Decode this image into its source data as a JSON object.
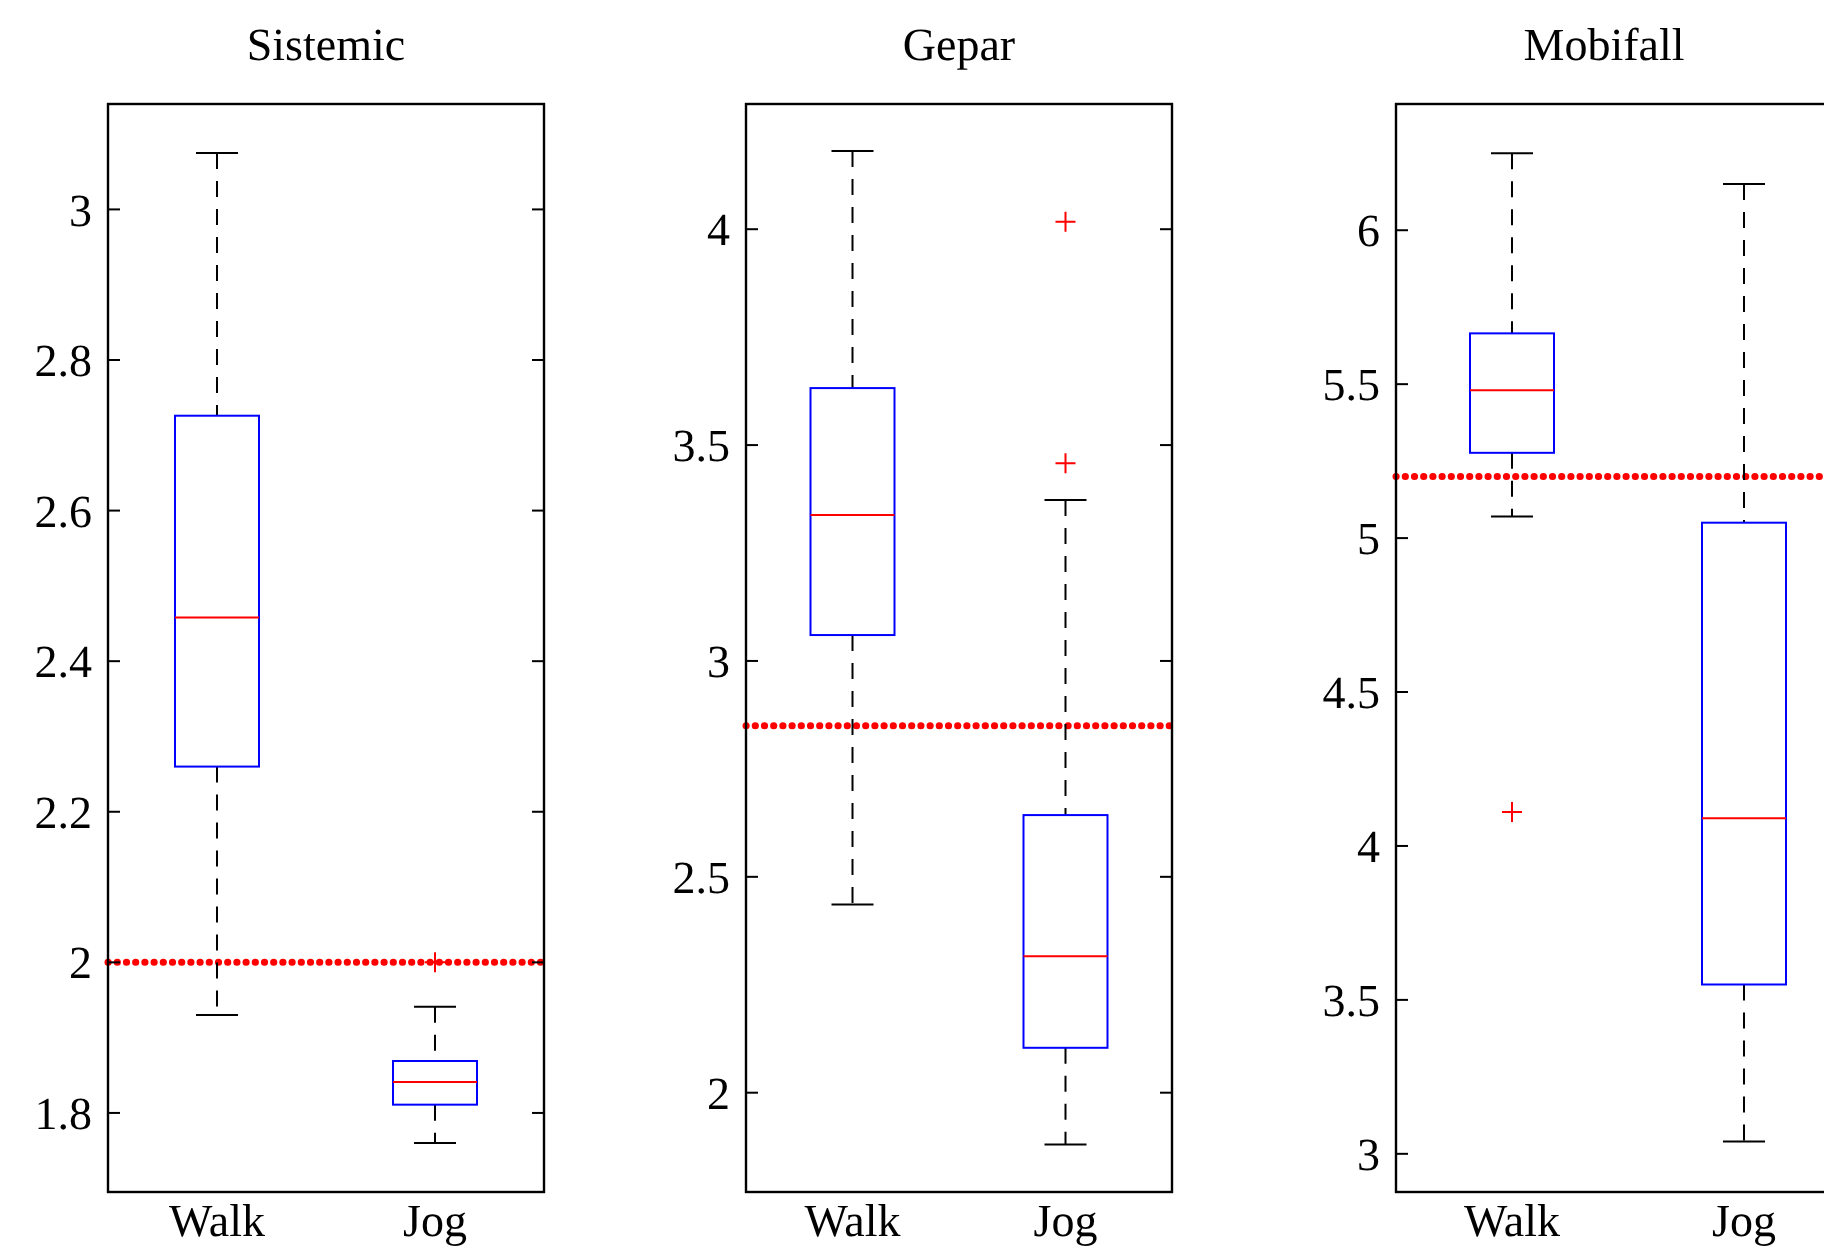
{
  "chart_data": [
    {
      "type": "box",
      "title": "Sistemic",
      "categories": [
        "Walk",
        "Jog"
      ],
      "ylim": [
        1.695,
        3.14
      ],
      "yticks": [
        1.8,
        2,
        2.2,
        2.4,
        2.6,
        2.8,
        3
      ],
      "boxes": [
        {
          "low": 1.93,
          "q1": 2.26,
          "median": 2.458,
          "q3": 2.726,
          "high": 3.075
        },
        {
          "low": 1.76,
          "q1": 1.811,
          "median": 1.841,
          "q3": 1.869,
          "high": 1.941,
          "outliers": [
            2.0
          ]
        }
      ],
      "color": "#0000ff",
      "marker": "cross",
      "grid": false,
      "ref_lines": [
        {
          "axis": "y",
          "value": 2.0,
          "color": "#ff0000",
          "line_style": "dotted"
        }
      ]
    },
    {
      "type": "box",
      "title": "Gepar",
      "categories": [
        "Walk",
        "Jog"
      ],
      "ylim": [
        1.77,
        4.29
      ],
      "yticks": [
        2,
        2.5,
        3,
        3.5,
        4
      ],
      "boxes": [
        {
          "low": 2.436,
          "q1": 3.06,
          "median": 3.338,
          "q3": 3.632,
          "high": 4.181
        },
        {
          "low": 1.88,
          "q1": 2.104,
          "median": 2.316,
          "q3": 2.643,
          "high": 3.373,
          "outliers": [
            3.458,
            4.017
          ]
        }
      ],
      "color": "#0000ff",
      "marker": "cross",
      "grid": false,
      "ref_lines": [
        {
          "axis": "y",
          "value": 2.85,
          "color": "#ff0000",
          "line_style": "dotted"
        }
      ]
    },
    {
      "type": "box",
      "title": "Mobifall",
      "categories": [
        "Walk",
        "Jog"
      ],
      "ylim": [
        2.876,
        6.41
      ],
      "yticks": [
        3,
        3.5,
        4,
        4.5,
        5,
        5.5,
        6
      ],
      "boxes": [
        {
          "low": 5.07,
          "q1": 5.277,
          "median": 5.48,
          "q3": 5.665,
          "high": 6.25,
          "outliers": [
            4.11
          ]
        },
        {
          "low": 3.04,
          "q1": 3.55,
          "median": 4.09,
          "q3": 5.05,
          "high": 6.15
        }
      ],
      "color": "#0000ff",
      "marker": "cross",
      "grid": false,
      "ref_lines": [
        {
          "axis": "y",
          "value": 5.2,
          "color": "#ff0000",
          "line_style": "dotted"
        }
      ]
    }
  ]
}
